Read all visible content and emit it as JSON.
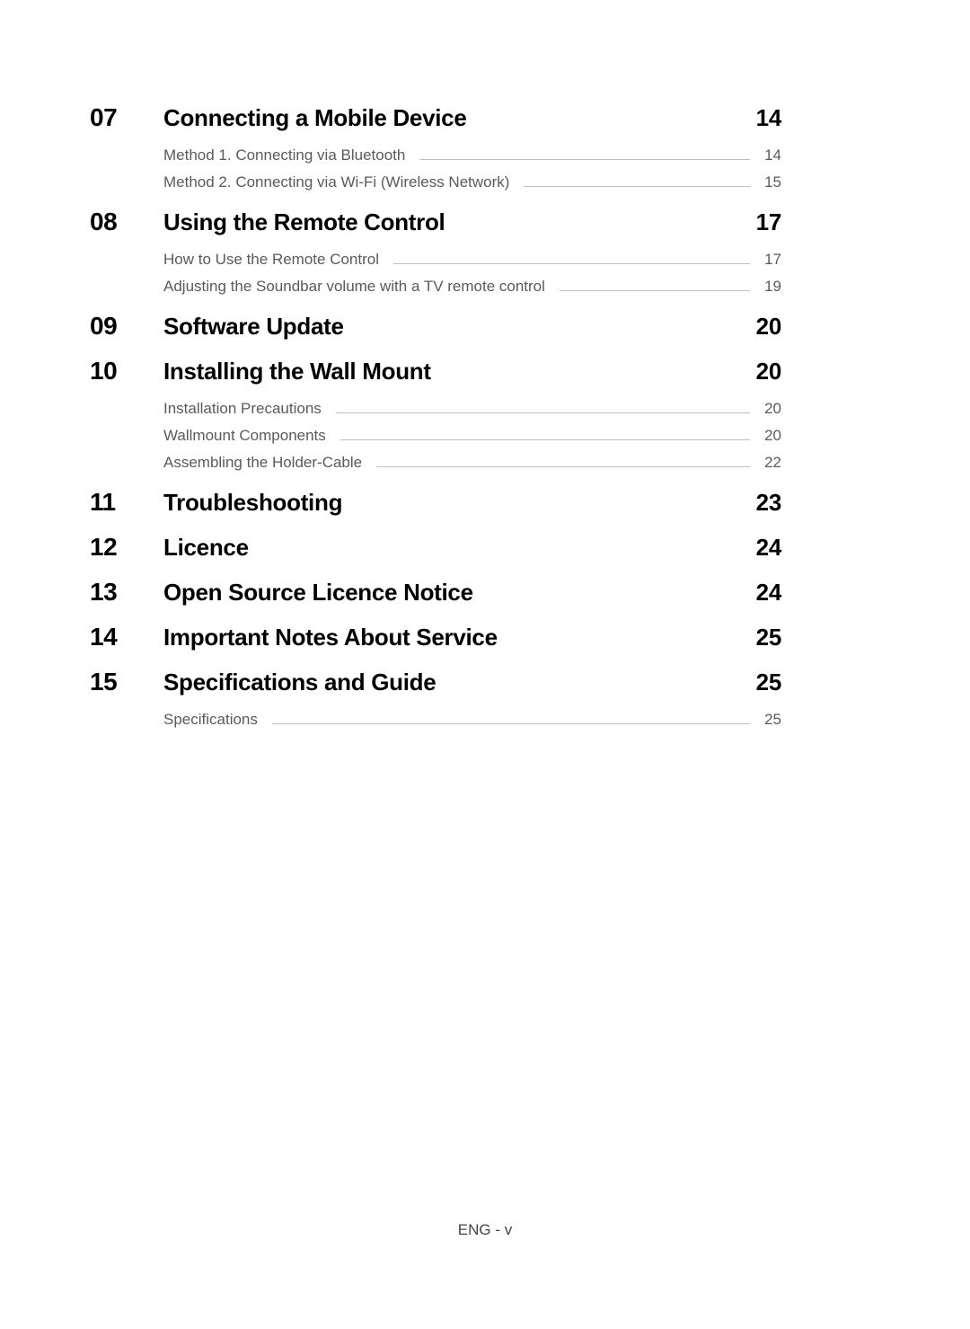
{
  "sections": [
    {
      "number": "07",
      "title": "Connecting a Mobile Device",
      "page": "14",
      "subs": [
        {
          "title": "Method 1. Connecting via Bluetooth",
          "page": "14"
        },
        {
          "title": "Method 2. Connecting via Wi-Fi (Wireless Network)",
          "page": "15"
        }
      ]
    },
    {
      "number": "08",
      "title": "Using the Remote Control",
      "page": "17",
      "subs": [
        {
          "title": "How to Use the Remote Control",
          "page": "17"
        },
        {
          "title": "Adjusting the Soundbar volume with a TV remote control",
          "page": "19"
        }
      ]
    },
    {
      "number": "09",
      "title": "Software Update",
      "page": "20",
      "subs": []
    },
    {
      "number": "10",
      "title": "Installing the Wall Mount",
      "page": "20",
      "subs": [
        {
          "title": "Installation Precautions",
          "page": "20"
        },
        {
          "title": "Wallmount Components",
          "page": "20"
        },
        {
          "title": "Assembling the Holder-Cable",
          "page": "22"
        }
      ]
    },
    {
      "number": "11",
      "title": "Troubleshooting",
      "page": "23",
      "subs": []
    },
    {
      "number": "12",
      "title": "Licence",
      "page": "24",
      "subs": []
    },
    {
      "number": "13",
      "title": "Open Source Licence Notice",
      "page": "24",
      "subs": []
    },
    {
      "number": "14",
      "title": "Important Notes About Service",
      "page": "25",
      "subs": []
    },
    {
      "number": "15",
      "title": "Specifications and Guide",
      "page": "25",
      "subs": [
        {
          "title": "Specifications",
          "page": "25"
        }
      ]
    }
  ],
  "footer": "ENG - v",
  "colors": {
    "background": "#ffffff",
    "heading": "#000000",
    "subtext": "#5a5a5a",
    "leader": "#c0c0c0",
    "footer": "#444444"
  },
  "typography": {
    "heading_fontsize": 26,
    "number_fontsize": 28,
    "sub_fontsize": 17,
    "footer_fontsize": 17,
    "heading_weight": 700,
    "sub_weight": 400
  }
}
